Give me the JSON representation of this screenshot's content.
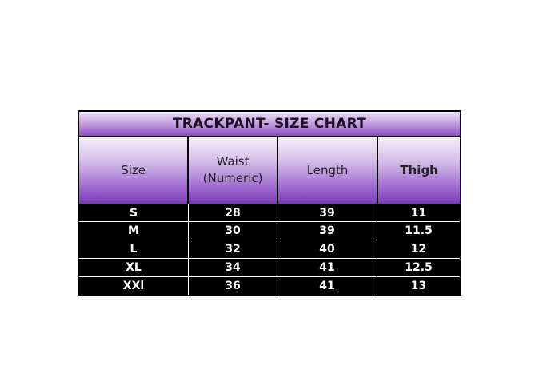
{
  "title": "TRACKPANT- SIZE CHART",
  "headers": [
    "Size",
    "Waist\n(Numeric)",
    "Length",
    "Thigh"
  ],
  "rows": [
    [
      "S",
      "28",
      "39",
      "11"
    ],
    [
      "M",
      "30",
      "39",
      "11.5"
    ],
    [
      "L",
      "32",
      "40",
      "12"
    ],
    [
      "XL",
      "34",
      "41",
      "12.5"
    ],
    [
      "XXl",
      "36",
      "41",
      "13"
    ]
  ],
  "colors": {
    "header_purple": "#7a38b8",
    "body_bg": "#000000",
    "body_text": "#ffffff"
  }
}
